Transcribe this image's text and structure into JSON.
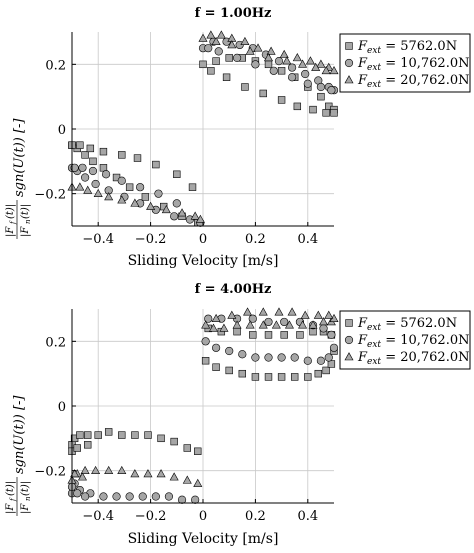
{
  "chart_data": [
    {
      "type": "scatter",
      "title": "f = 1.00Hz",
      "xlabel": "Sliding Velocity [m/s]",
      "ylabel": "|F_f(t)|/|F_n(t)| sgn(U(t)) [-]",
      "xlim": [
        -0.5,
        0.5
      ],
      "ylim": [
        -0.3,
        0.3
      ],
      "xticks": [
        -0.4,
        -0.2,
        0,
        0.2,
        0.4
      ],
      "yticks": [
        -0.2,
        0,
        0.2
      ],
      "xtick_labels": [
        "−0.4",
        "−0.2",
        "0",
        "0.2",
        "0.4"
      ],
      "ytick_labels": [
        "−0.2",
        "0",
        "0.2"
      ],
      "grid": true,
      "legend_position": "top-right",
      "series": [
        {
          "name": "F_ext = 5762.0N",
          "marker": "square",
          "x": [
            0.0,
            0.05,
            0.1,
            0.15,
            0.2,
            0.25,
            0.3,
            0.35,
            0.4,
            0.45,
            0.48,
            0.5,
            0.5,
            0.47,
            0.42,
            0.36,
            0.3,
            0.23,
            0.16,
            0.09,
            0.03,
            -0.5,
            -0.48,
            -0.45,
            -0.42,
            -0.38,
            -0.33,
            -0.28,
            -0.22,
            -0.15,
            -0.08,
            -0.02,
            -0.5,
            -0.47,
            -0.43,
            -0.38,
            -0.31,
            -0.25,
            -0.18,
            -0.1,
            -0.04
          ],
          "y": [
            0.2,
            0.21,
            0.22,
            0.22,
            0.21,
            0.2,
            0.18,
            0.16,
            0.13,
            0.1,
            0.07,
            0.06,
            0.05,
            0.05,
            0.06,
            0.07,
            0.09,
            0.11,
            0.13,
            0.16,
            0.18,
            -0.05,
            -0.06,
            -0.08,
            -0.1,
            -0.12,
            -0.15,
            -0.18,
            -0.21,
            -0.24,
            -0.27,
            -0.29,
            -0.05,
            -0.05,
            -0.06,
            -0.07,
            -0.08,
            -0.09,
            -0.11,
            -0.14,
            -0.18
          ]
        },
        {
          "name": "F_ext = 10,762.0N",
          "marker": "circle",
          "x": [
            0.0,
            0.04,
            0.09,
            0.14,
            0.19,
            0.24,
            0.29,
            0.34,
            0.39,
            0.44,
            0.48,
            0.5,
            0.49,
            0.45,
            0.4,
            0.34,
            0.27,
            0.2,
            0.13,
            0.06,
            0.02,
            -0.5,
            -0.48,
            -0.45,
            -0.41,
            -0.36,
            -0.3,
            -0.24,
            -0.18,
            -0.11,
            -0.05,
            -0.01,
            -0.49,
            -0.46,
            -0.42,
            -0.37,
            -0.31,
            -0.24,
            -0.17,
            -0.1
          ],
          "y": [
            0.25,
            0.27,
            0.27,
            0.26,
            0.25,
            0.23,
            0.21,
            0.19,
            0.17,
            0.15,
            0.13,
            0.12,
            0.12,
            0.13,
            0.14,
            0.16,
            0.18,
            0.2,
            0.22,
            0.24,
            0.25,
            -0.12,
            -0.13,
            -0.15,
            -0.17,
            -0.19,
            -0.21,
            -0.23,
            -0.25,
            -0.27,
            -0.28,
            -0.29,
            -0.12,
            -0.12,
            -0.13,
            -0.14,
            -0.16,
            -0.18,
            -0.2,
            -0.23
          ]
        },
        {
          "name": "F_ext = 20,762.0N",
          "marker": "triangle",
          "x": [
            0.0,
            0.03,
            0.07,
            0.11,
            0.16,
            0.21,
            0.26,
            0.31,
            0.36,
            0.41,
            0.45,
            0.48,
            0.5,
            0.47,
            0.43,
            0.38,
            0.32,
            0.25,
            0.18,
            0.11,
            0.05,
            -0.5,
            -0.47,
            -0.44,
            -0.4,
            -0.36,
            -0.31,
            -0.26,
            -0.2,
            -0.14,
            -0.08,
            -0.03,
            -0.01
          ],
          "y": [
            0.28,
            0.29,
            0.29,
            0.28,
            0.27,
            0.25,
            0.24,
            0.23,
            0.22,
            0.21,
            0.2,
            0.19,
            0.18,
            0.18,
            0.19,
            0.2,
            0.21,
            0.22,
            0.24,
            0.26,
            0.27,
            -0.18,
            -0.18,
            -0.19,
            -0.2,
            -0.21,
            -0.22,
            -0.23,
            -0.24,
            -0.25,
            -0.26,
            -0.27,
            -0.28
          ]
        }
      ]
    },
    {
      "type": "scatter",
      "title": "f = 4.00Hz",
      "xlabel": "Sliding Velocity [m/s]",
      "ylabel": "|F_f(t)|/|F_n(t)| sgn(U(t)) [-]",
      "xlim": [
        -0.5,
        0.5
      ],
      "ylim": [
        -0.3,
        0.3
      ],
      "xticks": [
        -0.4,
        -0.2,
        0,
        0.2,
        0.4
      ],
      "yticks": [
        -0.2,
        0,
        0.2
      ],
      "xtick_labels": [
        "−0.4",
        "−0.2",
        "0",
        "0.2",
        "0.4"
      ],
      "ytick_labels": [
        "−0.2",
        "0",
        "0.2"
      ],
      "grid": true,
      "legend_position": "top-right",
      "series": [
        {
          "name": "F_ext = 5762.0N",
          "marker": "square",
          "x": [
            0.01,
            0.05,
            0.1,
            0.15,
            0.2,
            0.25,
            0.3,
            0.35,
            0.4,
            0.44,
            0.47,
            0.49,
            0.5,
            0.49,
            0.46,
            0.42,
            0.37,
            0.31,
            0.25,
            0.19,
            0.13,
            0.07,
            0.02,
            -0.5,
            -0.49,
            -0.47,
            -0.44,
            -0.4,
            -0.36,
            -0.31,
            -0.26,
            -0.21,
            -0.16,
            -0.11,
            -0.06,
            -0.02,
            -0.5,
            -0.48,
            -0.44
          ],
          "y": [
            0.14,
            0.12,
            0.11,
            0.1,
            0.09,
            0.09,
            0.09,
            0.09,
            0.09,
            0.1,
            0.11,
            0.13,
            0.17,
            0.22,
            0.23,
            0.23,
            0.22,
            0.22,
            0.22,
            0.22,
            0.23,
            0.23,
            0.24,
            -0.12,
            -0.1,
            -0.09,
            -0.09,
            -0.09,
            -0.08,
            -0.09,
            -0.09,
            -0.09,
            -0.1,
            -0.11,
            -0.13,
            -0.14,
            -0.14,
            -0.13,
            -0.12
          ]
        },
        {
          "name": "F_ext = 10,762.0N",
          "marker": "circle",
          "x": [
            0.01,
            0.05,
            0.1,
            0.15,
            0.2,
            0.25,
            0.3,
            0.35,
            0.4,
            0.45,
            0.48,
            0.5,
            0.49,
            0.46,
            0.42,
            0.37,
            0.31,
            0.25,
            0.19,
            0.13,
            0.07,
            0.02,
            -0.5,
            -0.49,
            -0.47,
            -0.43,
            -0.38,
            -0.33,
            -0.28,
            -0.23,
            -0.18,
            -0.13,
            -0.08,
            -0.03,
            -0.5,
            -0.48,
            -0.45
          ],
          "y": [
            0.2,
            0.18,
            0.17,
            0.16,
            0.15,
            0.15,
            0.15,
            0.15,
            0.14,
            0.14,
            0.15,
            0.18,
            0.22,
            0.24,
            0.25,
            0.26,
            0.26,
            0.26,
            0.27,
            0.27,
            0.27,
            0.27,
            -0.27,
            -0.24,
            -0.26,
            -0.27,
            -0.28,
            -0.28,
            -0.28,
            -0.28,
            -0.28,
            -0.28,
            -0.29,
            -0.29,
            -0.25,
            -0.27,
            -0.28
          ]
        },
        {
          "name": "F_ext = 20,762.0N",
          "marker": "triangle",
          "x": [
            0.01,
            0.04,
            0.08,
            0.13,
            0.18,
            0.23,
            0.28,
            0.33,
            0.38,
            0.42,
            0.46,
            0.49,
            0.5,
            0.48,
            0.44,
            0.39,
            0.34,
            0.29,
            0.23,
            0.17,
            0.11,
            0.05,
            -0.5,
            -0.48,
            -0.45,
            -0.41,
            -0.36,
            -0.31,
            -0.26,
            -0.21,
            -0.16,
            -0.11,
            -0.06,
            -0.02,
            -0.49,
            -0.46
          ],
          "y": [
            0.25,
            0.24,
            0.24,
            0.25,
            0.25,
            0.25,
            0.25,
            0.25,
            0.25,
            0.25,
            0.26,
            0.26,
            0.27,
            0.28,
            0.28,
            0.28,
            0.29,
            0.29,
            0.29,
            0.29,
            0.28,
            0.27,
            -0.23,
            -0.21,
            -0.2,
            -0.2,
            -0.2,
            -0.2,
            -0.21,
            -0.21,
            -0.21,
            -0.22,
            -0.23,
            -0.24,
            -0.21,
            -0.22
          ]
        }
      ]
    }
  ]
}
